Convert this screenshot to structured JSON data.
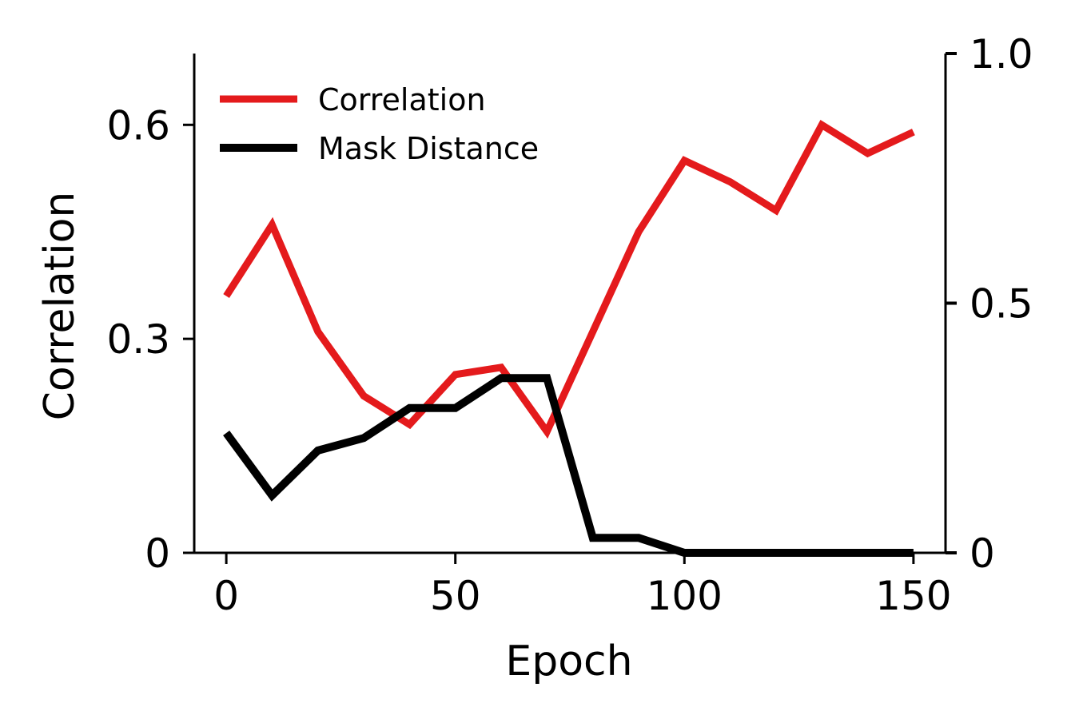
{
  "chart_data": {
    "type": "line",
    "x": [
      0,
      10,
      20,
      30,
      40,
      50,
      60,
      70,
      80,
      90,
      100,
      110,
      120,
      130,
      140,
      150
    ],
    "xlabel": "Epoch",
    "ylabel": "Correlation",
    "xlim": [
      -7,
      157
    ],
    "ylim": [
      0,
      0.7
    ],
    "y2lim": [
      0,
      1.0
    ],
    "xticks": [
      0,
      50,
      100,
      150
    ],
    "xtick_labels": [
      "0",
      "50",
      "100",
      "150"
    ],
    "yticks": [
      0,
      0.3,
      0.6
    ],
    "ytick_labels": [
      "0",
      "0.3",
      "0.6"
    ],
    "y2ticks": [
      0,
      0.5,
      1.0
    ],
    "y2tick_labels": [
      "0",
      "0.5",
      "1.0"
    ],
    "grid": false,
    "legend_position": "top-left",
    "series": [
      {
        "name": "Correlation",
        "axis": "left",
        "color": "#e41a1c",
        "values": [
          0.36,
          0.46,
          0.31,
          0.22,
          0.18,
          0.25,
          0.26,
          0.17,
          0.31,
          0.45,
          0.55,
          0.52,
          0.48,
          0.6,
          0.56,
          0.59
        ]
      },
      {
        "name": "Mask Distance",
        "axis": "right",
        "color": "#000000",
        "values": [
          0.24,
          0.115,
          0.205,
          0.23,
          0.29,
          0.29,
          0.35,
          0.35,
          0.03,
          0.03,
          0.0,
          0.0,
          0.0,
          0.0,
          0.0,
          0.0
        ]
      }
    ]
  }
}
